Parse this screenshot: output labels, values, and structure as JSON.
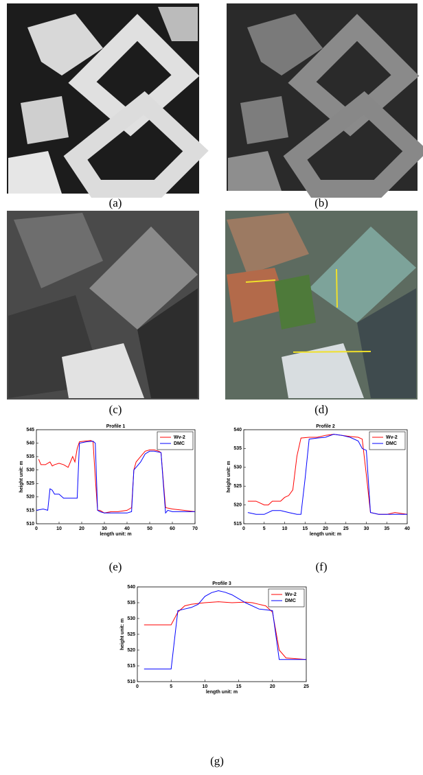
{
  "captions": [
    "(a)",
    "(b)",
    "(c)",
    "(d)",
    "(e)",
    "(f)",
    "(g)"
  ],
  "chart_data": [
    {
      "type": "line",
      "title": "Profile 1",
      "x_label": "length unit: m",
      "y_label": "height unit: m",
      "xlim": [
        0,
        70
      ],
      "xticks": [
        0,
        10,
        20,
        30,
        40,
        50,
        60,
        70
      ],
      "ylim": [
        510,
        545
      ],
      "yticks": [
        510,
        515,
        520,
        525,
        530,
        535,
        540,
        545
      ],
      "legend": "upper-right",
      "series": [
        {
          "name": "Wv-2",
          "color": "#ff0000",
          "x": [
            1,
            2,
            4,
            6,
            7,
            8,
            10,
            12,
            14,
            15,
            16,
            17,
            18,
            19,
            22,
            24,
            25,
            26,
            27,
            28,
            30,
            33,
            36,
            40,
            42,
            43,
            44,
            46,
            48,
            50,
            52,
            54,
            55,
            56,
            57,
            60,
            65,
            70
          ],
          "values": [
            534,
            532,
            532,
            533,
            531.5,
            532,
            532.5,
            532,
            531,
            533,
            535,
            533,
            538,
            540.5,
            540.8,
            541,
            540.5,
            527,
            515,
            515,
            514,
            514.5,
            514.5,
            515,
            516,
            530,
            533,
            535,
            537,
            537.5,
            537.5,
            537,
            536.5,
            526,
            516,
            515.5,
            515,
            514.5
          ]
        },
        {
          "name": "DMC",
          "color": "#0000ff",
          "x": [
            0,
            3,
            5,
            6,
            7,
            8,
            10,
            12,
            14,
            17,
            18,
            19,
            22,
            25,
            26,
            27,
            28,
            30,
            35,
            40,
            42,
            43,
            44,
            46,
            48,
            50,
            52,
            55,
            56,
            57,
            58,
            60,
            70
          ],
          "values": [
            515,
            515.5,
            515,
            523,
            522.5,
            521,
            521,
            519.5,
            519.5,
            519.5,
            519.5,
            540,
            540.5,
            540.7,
            540,
            515,
            514.5,
            514,
            514,
            514,
            514.5,
            530,
            531,
            533,
            536,
            537,
            537,
            536.5,
            525,
            514,
            515,
            514.5,
            514.5
          ]
        }
      ]
    },
    {
      "type": "line",
      "title": "Profile 2",
      "x_label": "length unit: m",
      "y_label": "height unit: m",
      "xlim": [
        0,
        40
      ],
      "xticks": [
        0,
        5,
        10,
        15,
        20,
        25,
        30,
        35,
        40
      ],
      "ylim": [
        515,
        540
      ],
      "yticks": [
        515,
        520,
        525,
        530,
        535,
        540
      ],
      "legend": "upper-right",
      "series": [
        {
          "name": "Wv-2",
          "color": "#ff0000",
          "x": [
            1,
            3,
            5,
            6,
            7,
            9,
            10,
            11,
            12,
            13,
            14,
            16,
            18,
            20,
            22,
            24,
            26,
            28,
            29,
            30,
            31,
            33,
            35,
            37,
            40
          ],
          "values": [
            521,
            521,
            520,
            520,
            521,
            521,
            522,
            522.5,
            524,
            533,
            537.8,
            538,
            538,
            538.5,
            538.8,
            538.5,
            538.2,
            538,
            537.5,
            528,
            518,
            517.5,
            517.5,
            518,
            517.5
          ]
        },
        {
          "name": "DMC",
          "color": "#0000ff",
          "x": [
            1,
            3,
            5,
            7,
            9,
            11,
            13,
            14,
            15,
            16,
            18,
            20,
            22,
            24,
            26,
            28,
            29,
            30,
            31,
            33,
            36,
            40
          ],
          "values": [
            518,
            517.5,
            517.5,
            518.5,
            518.5,
            518,
            517.5,
            517.5,
            527,
            537.5,
            537.8,
            538,
            538.8,
            538.5,
            538,
            537,
            535,
            534.5,
            518,
            517.5,
            517.5,
            517.5
          ]
        }
      ]
    },
    {
      "type": "line",
      "title": "Profile 3",
      "x_label": "length unit: m",
      "y_label": "height unit: m",
      "xlim": [
        0,
        25
      ],
      "xticks": [
        0,
        5,
        10,
        15,
        20,
        25
      ],
      "ylim": [
        510,
        540
      ],
      "yticks": [
        510,
        515,
        520,
        525,
        530,
        535,
        540
      ],
      "legend": "upper-right",
      "series": [
        {
          "name": "Wv-2",
          "color": "#ff0000",
          "x": [
            1,
            3,
            5,
            6,
            7,
            8,
            10,
            12,
            14,
            16,
            17,
            18,
            19,
            20,
            21,
            22,
            25
          ],
          "values": [
            528,
            528,
            528,
            532,
            534,
            534.5,
            535,
            535.3,
            535,
            535.2,
            535,
            534.5,
            534,
            532,
            520,
            517.5,
            517
          ]
        },
        {
          "name": "DMC",
          "color": "#0000ff",
          "x": [
            1,
            3,
            5,
            6,
            7,
            8,
            9,
            10,
            11,
            12,
            13,
            14,
            16,
            18,
            20,
            21,
            22,
            25
          ],
          "values": [
            514,
            514,
            514,
            532.5,
            533,
            533.5,
            534.5,
            537,
            538.2,
            538.8,
            538.3,
            537.5,
            535,
            533,
            532.5,
            517,
            517,
            517
          ]
        }
      ]
    }
  ]
}
